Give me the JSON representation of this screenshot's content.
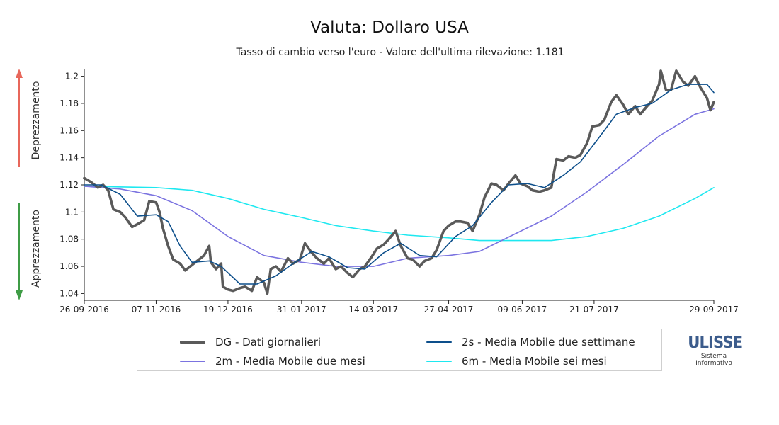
{
  "chart_data": {
    "type": "line",
    "title": "Valuta: Dollaro USA",
    "subtitle": "Tasso di cambio verso l'euro - Valore dell'ultima rilevazione: 1.181",
    "y_side_labels": {
      "top": "Deprezzamento",
      "bottom": "Apprezzamento"
    },
    "ylim": [
      1.035,
      1.205
    ],
    "yticks": [
      1.04,
      1.06,
      1.08,
      1.1,
      1.12,
      1.14,
      1.16,
      1.18,
      1.2
    ],
    "xlim": [
      "2016-09-26",
      "2017-09-29"
    ],
    "xticks": [
      {
        "date": "2016-09-26",
        "label": "26-09-2016"
      },
      {
        "date": "2016-11-07",
        "label": "07-11-2016"
      },
      {
        "date": "2016-12-19",
        "label": "19-12-2016"
      },
      {
        "date": "2017-01-31",
        "label": "31-01-2017"
      },
      {
        "date": "2017-03-14",
        "label": "14-03-2017"
      },
      {
        "date": "2017-04-27",
        "label": "27-04-2017"
      },
      {
        "date": "2017-06-09",
        "label": "09-06-2017"
      },
      {
        "date": "2017-07-21",
        "label": "21-07-2017"
      },
      {
        "date": "2017-09-29",
        "label": "29-09-2017"
      }
    ],
    "grid": false,
    "legend_position": "bottom",
    "series": [
      {
        "key": "dg",
        "name": "DG - Dati giornalieri",
        "color": "#5a5a5a",
        "points": [
          [
            "2016-09-26",
            1.125
          ],
          [
            "2016-09-30",
            1.122
          ],
          [
            "2016-10-04",
            1.118
          ],
          [
            "2016-10-07",
            1.12
          ],
          [
            "2016-10-10",
            1.116
          ],
          [
            "2016-10-13",
            1.102
          ],
          [
            "2016-10-17",
            1.1
          ],
          [
            "2016-10-20",
            1.096
          ],
          [
            "2016-10-24",
            1.089
          ],
          [
            "2016-10-27",
            1.091
          ],
          [
            "2016-10-31",
            1.094
          ],
          [
            "2016-11-03",
            1.108
          ],
          [
            "2016-11-07",
            1.107
          ],
          [
            "2016-11-09",
            1.1
          ],
          [
            "2016-11-11",
            1.088
          ],
          [
            "2016-11-14",
            1.075
          ],
          [
            "2016-11-17",
            1.065
          ],
          [
            "2016-11-21",
            1.062
          ],
          [
            "2016-11-24",
            1.057
          ],
          [
            "2016-11-28",
            1.061
          ],
          [
            "2016-12-01",
            1.064
          ],
          [
            "2016-12-05",
            1.068
          ],
          [
            "2016-12-08",
            1.075
          ],
          [
            "2016-12-09",
            1.063
          ],
          [
            "2016-12-12",
            1.058
          ],
          [
            "2016-12-15",
            1.062
          ],
          [
            "2016-12-16",
            1.045
          ],
          [
            "2016-12-19",
            1.043
          ],
          [
            "2016-12-22",
            1.042
          ],
          [
            "2016-12-26",
            1.044
          ],
          [
            "2016-12-29",
            1.045
          ],
          [
            "2017-01-02",
            1.042
          ],
          [
            "2017-01-05",
            1.052
          ],
          [
            "2017-01-09",
            1.048
          ],
          [
            "2017-01-11",
            1.04
          ],
          [
            "2017-01-13",
            1.058
          ],
          [
            "2017-01-16",
            1.06
          ],
          [
            "2017-01-19",
            1.056
          ],
          [
            "2017-01-23",
            1.066
          ],
          [
            "2017-01-26",
            1.062
          ],
          [
            "2017-01-30",
            1.065
          ],
          [
            "2017-02-02",
            1.077
          ],
          [
            "2017-02-06",
            1.07
          ],
          [
            "2017-02-09",
            1.066
          ],
          [
            "2017-02-13",
            1.062
          ],
          [
            "2017-02-16",
            1.066
          ],
          [
            "2017-02-20",
            1.058
          ],
          [
            "2017-02-23",
            1.06
          ],
          [
            "2017-02-27",
            1.055
          ],
          [
            "2017-03-02",
            1.052
          ],
          [
            "2017-03-06",
            1.058
          ],
          [
            "2017-03-09",
            1.06
          ],
          [
            "2017-03-13",
            1.067
          ],
          [
            "2017-03-16",
            1.073
          ],
          [
            "2017-03-20",
            1.076
          ],
          [
            "2017-03-23",
            1.08
          ],
          [
            "2017-03-27",
            1.086
          ],
          [
            "2017-03-30",
            1.075
          ],
          [
            "2017-04-03",
            1.066
          ],
          [
            "2017-04-06",
            1.065
          ],
          [
            "2017-04-10",
            1.06
          ],
          [
            "2017-04-13",
            1.064
          ],
          [
            "2017-04-17",
            1.066
          ],
          [
            "2017-04-20",
            1.072
          ],
          [
            "2017-04-24",
            1.086
          ],
          [
            "2017-04-27",
            1.09
          ],
          [
            "2017-05-01",
            1.093
          ],
          [
            "2017-05-04",
            1.093
          ],
          [
            "2017-05-08",
            1.092
          ],
          [
            "2017-05-11",
            1.086
          ],
          [
            "2017-05-15",
            1.098
          ],
          [
            "2017-05-18",
            1.111
          ],
          [
            "2017-05-22",
            1.121
          ],
          [
            "2017-05-25",
            1.12
          ],
          [
            "2017-05-29",
            1.116
          ],
          [
            "2017-06-01",
            1.121
          ],
          [
            "2017-06-05",
            1.127
          ],
          [
            "2017-06-08",
            1.121
          ],
          [
            "2017-06-12",
            1.119
          ],
          [
            "2017-06-15",
            1.116
          ],
          [
            "2017-06-19",
            1.115
          ],
          [
            "2017-06-22",
            1.116
          ],
          [
            "2017-06-26",
            1.118
          ],
          [
            "2017-06-29",
            1.139
          ],
          [
            "2017-07-03",
            1.138
          ],
          [
            "2017-07-06",
            1.141
          ],
          [
            "2017-07-10",
            1.14
          ],
          [
            "2017-07-13",
            1.142
          ],
          [
            "2017-07-17",
            1.151
          ],
          [
            "2017-07-20",
            1.163
          ],
          [
            "2017-07-24",
            1.164
          ],
          [
            "2017-07-27",
            1.168
          ],
          [
            "2017-07-31",
            1.181
          ],
          [
            "2017-08-03",
            1.186
          ],
          [
            "2017-08-07",
            1.179
          ],
          [
            "2017-08-10",
            1.172
          ],
          [
            "2017-08-14",
            1.178
          ],
          [
            "2017-08-17",
            1.172
          ],
          [
            "2017-08-21",
            1.178
          ],
          [
            "2017-08-24",
            1.182
          ],
          [
            "2017-08-28",
            1.194
          ],
          [
            "2017-08-29",
            1.204
          ],
          [
            "2017-09-01",
            1.19
          ],
          [
            "2017-09-04",
            1.19
          ],
          [
            "2017-09-07",
            1.204
          ],
          [
            "2017-09-11",
            1.196
          ],
          [
            "2017-09-14",
            1.193
          ],
          [
            "2017-09-18",
            1.2
          ],
          [
            "2017-09-21",
            1.192
          ],
          [
            "2017-09-25",
            1.184
          ],
          [
            "2017-09-27",
            1.175
          ],
          [
            "2017-09-29",
            1.181
          ]
        ]
      },
      {
        "key": "2s",
        "name": "2s - Media Mobile due settimane",
        "color": "#0d4f8b",
        "points": [
          [
            "2016-09-26",
            1.12
          ],
          [
            "2016-10-06",
            1.12
          ],
          [
            "2016-10-17",
            1.113
          ],
          [
            "2016-10-27",
            1.097
          ],
          [
            "2016-11-07",
            1.098
          ],
          [
            "2016-11-14",
            1.093
          ],
          [
            "2016-11-21",
            1.075
          ],
          [
            "2016-11-28",
            1.063
          ],
          [
            "2016-12-08",
            1.064
          ],
          [
            "2016-12-15",
            1.06
          ],
          [
            "2016-12-26",
            1.047
          ],
          [
            "2017-01-05",
            1.047
          ],
          [
            "2017-01-16",
            1.053
          ],
          [
            "2017-01-26",
            1.062
          ],
          [
            "2017-02-06",
            1.071
          ],
          [
            "2017-02-16",
            1.067
          ],
          [
            "2017-02-27",
            1.059
          ],
          [
            "2017-03-09",
            1.058
          ],
          [
            "2017-03-20",
            1.07
          ],
          [
            "2017-03-30",
            1.077
          ],
          [
            "2017-04-10",
            1.068
          ],
          [
            "2017-04-20",
            1.067
          ],
          [
            "2017-05-01",
            1.082
          ],
          [
            "2017-05-11",
            1.09
          ],
          [
            "2017-05-22",
            1.107
          ],
          [
            "2017-06-01",
            1.12
          ],
          [
            "2017-06-12",
            1.121
          ],
          [
            "2017-06-22",
            1.118
          ],
          [
            "2017-07-03",
            1.127
          ],
          [
            "2017-07-13",
            1.137
          ],
          [
            "2017-07-24",
            1.155
          ],
          [
            "2017-08-03",
            1.172
          ],
          [
            "2017-08-14",
            1.177
          ],
          [
            "2017-08-24",
            1.18
          ],
          [
            "2017-09-04",
            1.19
          ],
          [
            "2017-09-14",
            1.194
          ],
          [
            "2017-09-25",
            1.194
          ],
          [
            "2017-09-29",
            1.188
          ]
        ]
      },
      {
        "key": "2m",
        "name": "2m - Media Mobile due mesi",
        "color": "#7b73e0",
        "points": [
          [
            "2016-09-26",
            1.119
          ],
          [
            "2016-10-17",
            1.117
          ],
          [
            "2016-11-07",
            1.112
          ],
          [
            "2016-11-28",
            1.101
          ],
          [
            "2016-12-19",
            1.082
          ],
          [
            "2017-01-09",
            1.068
          ],
          [
            "2017-01-31",
            1.063
          ],
          [
            "2017-02-20",
            1.06
          ],
          [
            "2017-03-14",
            1.06
          ],
          [
            "2017-04-03",
            1.066
          ],
          [
            "2017-04-27",
            1.068
          ],
          [
            "2017-05-15",
            1.071
          ],
          [
            "2017-06-05",
            1.084
          ],
          [
            "2017-06-26",
            1.097
          ],
          [
            "2017-07-17",
            1.115
          ],
          [
            "2017-08-07",
            1.135
          ],
          [
            "2017-08-28",
            1.156
          ],
          [
            "2017-09-18",
            1.172
          ],
          [
            "2017-09-29",
            1.176
          ]
        ]
      },
      {
        "key": "6m",
        "name": "6m - Media Mobile sei mesi",
        "color": "#1ee8f0",
        "points": [
          [
            "2016-09-26",
            1.119
          ],
          [
            "2016-11-07",
            1.118
          ],
          [
            "2016-11-28",
            1.116
          ],
          [
            "2016-12-19",
            1.11
          ],
          [
            "2017-01-09",
            1.102
          ],
          [
            "2017-01-31",
            1.096
          ],
          [
            "2017-02-20",
            1.09
          ],
          [
            "2017-03-14",
            1.086
          ],
          [
            "2017-04-03",
            1.083
          ],
          [
            "2017-04-27",
            1.081
          ],
          [
            "2017-05-15",
            1.079
          ],
          [
            "2017-06-09",
            1.079
          ],
          [
            "2017-06-26",
            1.079
          ],
          [
            "2017-07-17",
            1.082
          ],
          [
            "2017-08-07",
            1.088
          ],
          [
            "2017-08-28",
            1.097
          ],
          [
            "2017-09-18",
            1.11
          ],
          [
            "2017-09-29",
            1.118
          ]
        ]
      }
    ]
  },
  "legend": {
    "dg": "DG - Dati giornalieri",
    "s2": "2s - Media Mobile due settimane",
    "m2": "2m - Media Mobile due mesi",
    "m6": "6m - Media Mobile sei mesi"
  },
  "colors": {
    "dg": "#5a5a5a",
    "s2": "#0d4f8b",
    "m2": "#7b73e0",
    "m6": "#1ee8f0",
    "arrow_up": "#e8675b",
    "arrow_down": "#3f9c46",
    "brand": "#3c5c8c"
  },
  "logo": {
    "brand": "ULISSE",
    "line1": "Sistema",
    "line2": "Informativo"
  }
}
